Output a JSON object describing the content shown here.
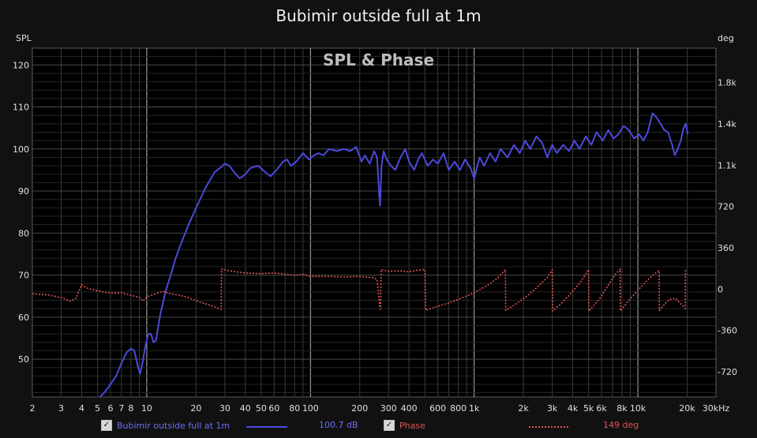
{
  "chart_data": {
    "type": "line",
    "title": "Bubimir outside full at 1m",
    "subtitle": "SPL & Phase",
    "x_scale": "log",
    "xlim": [
      2,
      30000
    ],
    "x_unit": "Hz",
    "x_ticks": [
      {
        "v": 2,
        "l": "2"
      },
      {
        "v": 3,
        "l": "3"
      },
      {
        "v": 4,
        "l": "4"
      },
      {
        "v": 5,
        "l": "5"
      },
      {
        "v": 6,
        "l": "6"
      },
      {
        "v": 7,
        "l": "7"
      },
      {
        "v": 8,
        "l": "8"
      },
      {
        "v": 10,
        "l": "10"
      },
      {
        "v": 20,
        "l": "20"
      },
      {
        "v": 30,
        "l": "30"
      },
      {
        "v": 40,
        "l": "40"
      },
      {
        "v": 50,
        "l": "50"
      },
      {
        "v": 60,
        "l": "60"
      },
      {
        "v": 80,
        "l": "80"
      },
      {
        "v": 100,
        "l": "100"
      },
      {
        "v": 200,
        "l": "200"
      },
      {
        "v": 300,
        "l": "300"
      },
      {
        "v": 400,
        "l": "400"
      },
      {
        "v": 600,
        "l": "600"
      },
      {
        "v": 800,
        "l": "800"
      },
      {
        "v": 1000,
        "l": "1k"
      },
      {
        "v": 2000,
        "l": "2k"
      },
      {
        "v": 3000,
        "l": "3k"
      },
      {
        "v": 4000,
        "l": "4k"
      },
      {
        "v": 5000,
        "l": "5k"
      },
      {
        "v": 6000,
        "l": "6k"
      },
      {
        "v": 8000,
        "l": "8k"
      },
      {
        "v": 10000,
        "l": "10k"
      },
      {
        "v": 20000,
        "l": "20k"
      },
      {
        "v": 30000,
        "l": "30kHz"
      }
    ],
    "ylabel": "SPL",
    "ylim": [
      41,
      124
    ],
    "y_ticks": [
      50,
      60,
      70,
      80,
      90,
      100,
      110,
      120
    ],
    "y2label": "deg",
    "y2lim": [
      -940,
      2100
    ],
    "y2_ticks": [
      {
        "v": -720,
        "l": "-720"
      },
      {
        "v": -360,
        "l": "-360"
      },
      {
        "v": 0,
        "l": "0"
      },
      {
        "v": 360,
        "l": "360"
      },
      {
        "v": 720,
        "l": "720"
      },
      {
        "v": 1080,
        "l": "1.1k"
      },
      {
        "v": 1440,
        "l": "1.4k"
      },
      {
        "v": 1800,
        "l": "1.8k"
      }
    ],
    "grid": true,
    "legend_position": "bottom",
    "series": [
      {
        "name": "Bubimir outside full at 1m",
        "axis": "left",
        "color": "#4a4adb",
        "style": "solid",
        "legend_value": "100.7 dB",
        "points": [
          [
            5,
            40.5
          ],
          [
            5.5,
            42
          ],
          [
            6,
            44
          ],
          [
            6.5,
            46
          ],
          [
            7,
            49
          ],
          [
            7.5,
            51.5
          ],
          [
            8,
            52.5
          ],
          [
            8.4,
            52
          ],
          [
            8.8,
            48.5
          ],
          [
            9.1,
            46.5
          ],
          [
            9.4,
            49
          ],
          [
            9.8,
            53
          ],
          [
            10.2,
            56
          ],
          [
            10.6,
            56
          ],
          [
            11,
            54
          ],
          [
            11.4,
            54.5
          ],
          [
            12,
            60
          ],
          [
            13,
            66
          ],
          [
            14,
            70
          ],
          [
            15,
            74
          ],
          [
            16,
            77
          ],
          [
            18,
            82
          ],
          [
            20,
            86
          ],
          [
            23,
            91
          ],
          [
            26,
            94.5
          ],
          [
            28,
            95.5
          ],
          [
            30,
            96.5
          ],
          [
            32,
            96
          ],
          [
            35,
            94
          ],
          [
            37,
            93
          ],
          [
            40,
            94
          ],
          [
            43,
            95.5
          ],
          [
            48,
            96
          ],
          [
            53,
            94.5
          ],
          [
            57,
            93.5
          ],
          [
            62,
            95
          ],
          [
            68,
            97
          ],
          [
            72,
            97.5
          ],
          [
            76,
            96
          ],
          [
            82,
            97
          ],
          [
            90,
            99
          ],
          [
            98,
            97.5
          ],
          [
            105,
            98.5
          ],
          [
            112,
            99
          ],
          [
            120,
            98.5
          ],
          [
            130,
            100
          ],
          [
            145,
            99.5
          ],
          [
            160,
            100
          ],
          [
            175,
            99.5
          ],
          [
            190,
            100.5
          ],
          [
            205,
            97
          ],
          [
            215,
            98.5
          ],
          [
            230,
            96.5
          ],
          [
            245,
            99.5
          ],
          [
            255,
            98
          ],
          [
            262,
            90
          ],
          [
            266,
            86.5
          ],
          [
            272,
            96
          ],
          [
            280,
            99.5
          ],
          [
            292,
            97.5
          ],
          [
            310,
            96
          ],
          [
            330,
            95
          ],
          [
            355,
            98
          ],
          [
            380,
            100
          ],
          [
            400,
            97
          ],
          [
            430,
            95
          ],
          [
            460,
            98
          ],
          [
            480,
            99
          ],
          [
            520,
            96
          ],
          [
            560,
            97.5
          ],
          [
            600,
            96.5
          ],
          [
            650,
            99
          ],
          [
            700,
            95
          ],
          [
            760,
            97
          ],
          [
            820,
            95
          ],
          [
            880,
            97.5
          ],
          [
            950,
            95.5
          ],
          [
            1000,
            93
          ],
          [
            1080,
            98
          ],
          [
            1150,
            96
          ],
          [
            1250,
            99
          ],
          [
            1350,
            97
          ],
          [
            1450,
            100
          ],
          [
            1600,
            98
          ],
          [
            1750,
            101
          ],
          [
            1900,
            99
          ],
          [
            2050,
            102
          ],
          [
            2200,
            100
          ],
          [
            2400,
            103
          ],
          [
            2600,
            101.5
          ],
          [
            2800,
            98
          ],
          [
            3000,
            101
          ],
          [
            3200,
            99
          ],
          [
            3500,
            101
          ],
          [
            3800,
            99.5
          ],
          [
            4100,
            102
          ],
          [
            4400,
            100
          ],
          [
            4800,
            103
          ],
          [
            5200,
            101
          ],
          [
            5600,
            104
          ],
          [
            6100,
            102
          ],
          [
            6600,
            104.5
          ],
          [
            7100,
            102.5
          ],
          [
            7600,
            103.5
          ],
          [
            8200,
            105.5
          ],
          [
            8800,
            104.5
          ],
          [
            9500,
            102.5
          ],
          [
            10200,
            103.5
          ],
          [
            10800,
            102
          ],
          [
            11500,
            104
          ],
          [
            12300,
            108.5
          ],
          [
            13000,
            107.5
          ],
          [
            13800,
            106
          ],
          [
            14500,
            104.5
          ],
          [
            15300,
            104
          ],
          [
            16200,
            101
          ],
          [
            16800,
            98.5
          ],
          [
            17500,
            100
          ],
          [
            18300,
            102
          ],
          [
            19000,
            105
          ],
          [
            19600,
            106
          ],
          [
            20200,
            103.5
          ]
        ]
      },
      {
        "name": "Phase",
        "axis": "right",
        "color": "#e05555",
        "style": "dotted",
        "legend_value": "149 deg",
        "points": [
          [
            2,
            -40
          ],
          [
            2.5,
            -50
          ],
          [
            3,
            -75
          ],
          [
            3.4,
            -105
          ],
          [
            3.7,
            -80
          ],
          [
            4,
            40
          ],
          [
            4.3,
            10
          ],
          [
            5,
            -15
          ],
          [
            6,
            -35
          ],
          [
            7,
            -30
          ],
          [
            8,
            -55
          ],
          [
            9,
            -70
          ],
          [
            9.5,
            -105
          ],
          [
            10,
            -70
          ],
          [
            10.8,
            -50
          ],
          [
            11.6,
            -35
          ],
          [
            12.5,
            -20
          ],
          [
            14,
            -40
          ],
          [
            16,
            -55
          ],
          [
            18,
            -75
          ],
          [
            20,
            -100
          ],
          [
            23,
            -130
          ],
          [
            26,
            -155
          ],
          [
            28.5,
            -175
          ],
          [
            28.6,
            175
          ],
          [
            32,
            160
          ],
          [
            40,
            140
          ],
          [
            50,
            135
          ],
          [
            60,
            140
          ],
          [
            70,
            130
          ],
          [
            80,
            120
          ],
          [
            90,
            130
          ],
          [
            100,
            110
          ],
          [
            130,
            110
          ],
          [
            160,
            105
          ],
          [
            200,
            110
          ],
          [
            240,
            100
          ],
          [
            255,
            85
          ],
          [
            265,
            -160
          ],
          [
            268,
            -175
          ],
          [
            270,
            170
          ],
          [
            300,
            155
          ],
          [
            350,
            160
          ],
          [
            400,
            150
          ],
          [
            450,
            165
          ],
          [
            500,
            170
          ],
          [
            505,
            -185
          ],
          [
            600,
            -150
          ],
          [
            700,
            -120
          ],
          [
            800,
            -90
          ],
          [
            900,
            -60
          ],
          [
            1000,
            -30
          ],
          [
            1200,
            30
          ],
          [
            1400,
            100
          ],
          [
            1550,
            170
          ],
          [
            1560,
            -185
          ],
          [
            1800,
            -130
          ],
          [
            2100,
            -60
          ],
          [
            2400,
            10
          ],
          [
            2800,
            100
          ],
          [
            3000,
            170
          ],
          [
            3020,
            -190
          ],
          [
            3500,
            -110
          ],
          [
            4000,
            -20
          ],
          [
            4500,
            70
          ],
          [
            5000,
            170
          ],
          [
            5020,
            -190
          ],
          [
            5800,
            -90
          ],
          [
            6500,
            20
          ],
          [
            7200,
            120
          ],
          [
            7800,
            175
          ],
          [
            7820,
            -190
          ],
          [
            8800,
            -100
          ],
          [
            10000,
            -10
          ],
          [
            11500,
            80
          ],
          [
            13000,
            150
          ],
          [
            13500,
            160
          ],
          [
            13520,
            -185
          ],
          [
            15500,
            -90
          ],
          [
            17000,
            -80
          ],
          [
            19500,
            -170
          ],
          [
            19520,
            175
          ]
        ]
      }
    ]
  }
}
